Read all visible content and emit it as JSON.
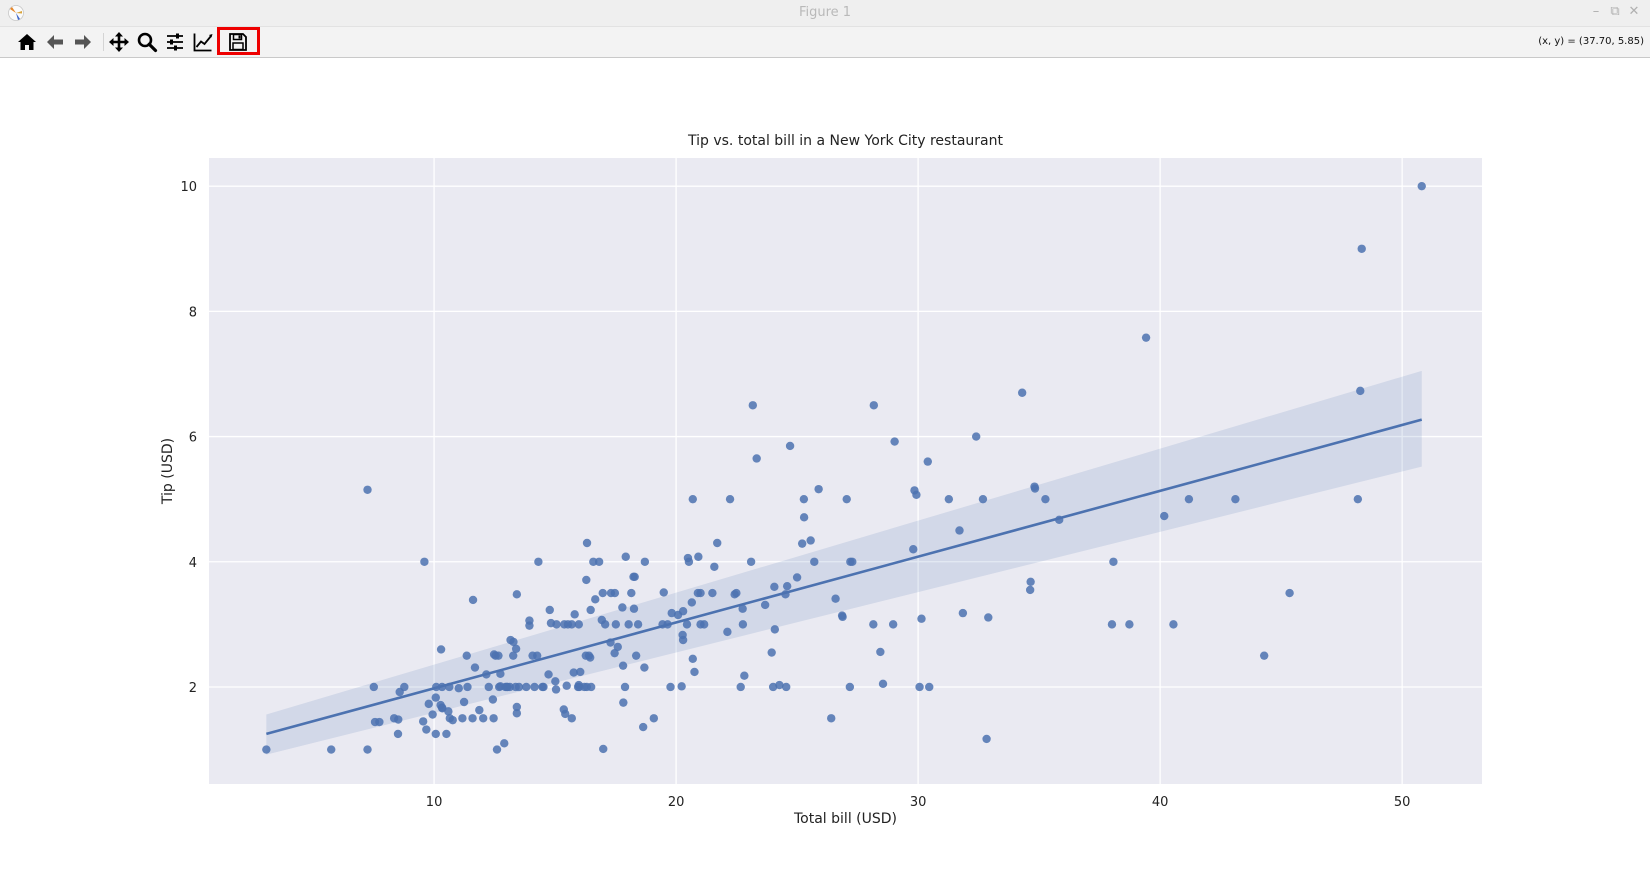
{
  "window": {
    "title": "Figure 1",
    "minimize_icon": "minimize-icon",
    "restore_icon": "restore-icon",
    "close_icon": "close-icon"
  },
  "toolbar": {
    "buttons": [
      {
        "icon": "home-icon",
        "name": "home-button"
      },
      {
        "icon": "back-arrow-icon",
        "name": "back-button"
      },
      {
        "icon": "forward-arrow-icon",
        "name": "forward-button"
      },
      {
        "icon": "pan-move-icon",
        "name": "pan-button"
      },
      {
        "icon": "zoom-magnifier-icon",
        "name": "zoom-button"
      },
      {
        "icon": "subplots-sliders-icon",
        "name": "configure-subplots-button"
      },
      {
        "icon": "edit-axes-icon",
        "name": "edit-axes-button"
      },
      {
        "icon": "save-floppy-icon",
        "name": "save-button",
        "highlighted": true
      }
    ],
    "coord_readout": "(x, y) = (37.70, 5.85)",
    "highlight_color": "#ee0000"
  },
  "chart_data": {
    "type": "scatter",
    "title": "Tip vs. total bill in a New York City restaurant",
    "xlabel": "Total bill (USD)",
    "ylabel": "Tip (USD)",
    "xlim": [
      0.7,
      53.3
    ],
    "ylim": [
      0.45,
      10.45
    ],
    "xticks": [
      10,
      20,
      30,
      40,
      50
    ],
    "yticks": [
      2,
      4,
      6,
      8,
      10
    ],
    "grid": true,
    "background": "#eaeaf2",
    "point_color": "#4c72b0",
    "line_color": "#4c72b0",
    "band_color": "#4c72b0",
    "points": [
      [
        3.07,
        1.0
      ],
      [
        5.75,
        1.0
      ],
      [
        7.25,
        1.0
      ],
      [
        7.25,
        5.15
      ],
      [
        7.51,
        2.0
      ],
      [
        7.56,
        1.44
      ],
      [
        7.74,
        1.44
      ],
      [
        8.35,
        1.5
      ],
      [
        8.51,
        1.25
      ],
      [
        8.52,
        1.48
      ],
      [
        8.58,
        1.92
      ],
      [
        8.77,
        2.0
      ],
      [
        9.55,
        1.45
      ],
      [
        9.6,
        4.0
      ],
      [
        9.68,
        1.32
      ],
      [
        9.78,
        1.73
      ],
      [
        9.94,
        1.56
      ],
      [
        10.07,
        1.83
      ],
      [
        10.07,
        1.25
      ],
      [
        10.09,
        2.0
      ],
      [
        10.27,
        1.71
      ],
      [
        10.29,
        2.6
      ],
      [
        10.33,
        1.67
      ],
      [
        10.33,
        2.0
      ],
      [
        10.34,
        1.66
      ],
      [
        10.51,
        1.25
      ],
      [
        10.59,
        1.61
      ],
      [
        10.63,
        2.0
      ],
      [
        10.65,
        1.5
      ],
      [
        10.77,
        1.47
      ],
      [
        11.02,
        1.98
      ],
      [
        11.17,
        1.5
      ],
      [
        11.24,
        1.76
      ],
      [
        11.35,
        2.5
      ],
      [
        11.38,
        2.0
      ],
      [
        11.59,
        1.5
      ],
      [
        11.61,
        3.39
      ],
      [
        11.69,
        2.31
      ],
      [
        11.87,
        1.63
      ],
      [
        12.03,
        1.5
      ],
      [
        12.16,
        2.2
      ],
      [
        12.26,
        2.0
      ],
      [
        12.43,
        1.8
      ],
      [
        12.46,
        1.5
      ],
      [
        12.48,
        2.52
      ],
      [
        12.54,
        2.5
      ],
      [
        12.6,
        1.0
      ],
      [
        12.66,
        2.5
      ],
      [
        12.69,
        2.0
      ],
      [
        12.74,
        2.01
      ],
      [
        12.74,
        2.21
      ],
      [
        12.9,
        1.1
      ],
      [
        12.95,
        2.0
      ],
      [
        13.0,
        2.0
      ],
      [
        13.03,
        2.0
      ],
      [
        13.13,
        2.0
      ],
      [
        13.16,
        2.75
      ],
      [
        13.28,
        2.72
      ],
      [
        13.27,
        2.5
      ],
      [
        13.37,
        2.0
      ],
      [
        13.39,
        2.61
      ],
      [
        13.42,
        1.58
      ],
      [
        13.42,
        1.68
      ],
      [
        13.42,
        3.48
      ],
      [
        13.51,
        2.0
      ],
      [
        13.81,
        2.0
      ],
      [
        13.94,
        3.06
      ],
      [
        13.94,
        2.98
      ],
      [
        14.07,
        2.5
      ],
      [
        14.15,
        2.0
      ],
      [
        14.26,
        2.5
      ],
      [
        14.31,
        4.0
      ],
      [
        14.48,
        2.0
      ],
      [
        14.52,
        2.0
      ],
      [
        14.73,
        2.2
      ],
      [
        14.78,
        3.23
      ],
      [
        14.83,
        3.02
      ],
      [
        15.01,
        2.09
      ],
      [
        15.04,
        1.96
      ],
      [
        15.06,
        3.0
      ],
      [
        15.36,
        1.64
      ],
      [
        15.38,
        3.0
      ],
      [
        15.42,
        1.57
      ],
      [
        15.48,
        2.02
      ],
      [
        15.53,
        3.0
      ],
      [
        15.69,
        1.5
      ],
      [
        15.69,
        3.0
      ],
      [
        15.77,
        2.23
      ],
      [
        15.81,
        3.16
      ],
      [
        15.95,
        2.0
      ],
      [
        15.98,
        2.03
      ],
      [
        15.98,
        3.0
      ],
      [
        16.0,
        2.0
      ],
      [
        16.04,
        2.24
      ],
      [
        16.21,
        2.0
      ],
      [
        16.27,
        2.5
      ],
      [
        16.29,
        3.71
      ],
      [
        16.31,
        2.0
      ],
      [
        16.32,
        4.3
      ],
      [
        16.4,
        2.5
      ],
      [
        16.45,
        2.47
      ],
      [
        16.47,
        3.23
      ],
      [
        16.49,
        2.0
      ],
      [
        16.58,
        4.0
      ],
      [
        16.66,
        3.4
      ],
      [
        16.82,
        4.0
      ],
      [
        16.93,
        3.07
      ],
      [
        16.97,
        3.5
      ],
      [
        16.99,
        1.01
      ],
      [
        17.07,
        3.0
      ],
      [
        17.29,
        2.71
      ],
      [
        17.31,
        3.5
      ],
      [
        17.46,
        2.54
      ],
      [
        17.47,
        3.5
      ],
      [
        17.51,
        3.0
      ],
      [
        17.59,
        2.64
      ],
      [
        17.78,
        3.27
      ],
      [
        17.81,
        2.34
      ],
      [
        17.82,
        1.75
      ],
      [
        17.89,
        2.0
      ],
      [
        17.92,
        4.08
      ],
      [
        18.04,
        3.0
      ],
      [
        18.15,
        3.5
      ],
      [
        18.24,
        3.76
      ],
      [
        18.26,
        3.25
      ],
      [
        18.29,
        3.76
      ],
      [
        18.35,
        2.5
      ],
      [
        18.43,
        3.0
      ],
      [
        18.64,
        1.36
      ],
      [
        18.69,
        2.31
      ],
      [
        18.71,
        4.0
      ],
      [
        19.08,
        1.5
      ],
      [
        19.44,
        3.0
      ],
      [
        19.49,
        3.51
      ],
      [
        19.65,
        3.0
      ],
      [
        19.77,
        2.0
      ],
      [
        19.82,
        3.18
      ],
      [
        20.08,
        3.15
      ],
      [
        20.23,
        2.01
      ],
      [
        20.27,
        2.83
      ],
      [
        20.29,
        2.75
      ],
      [
        20.29,
        3.21
      ],
      [
        20.45,
        3.0
      ],
      [
        20.49,
        4.06
      ],
      [
        20.53,
        4.0
      ],
      [
        20.65,
        3.35
      ],
      [
        20.69,
        2.45
      ],
      [
        20.69,
        5.0
      ],
      [
        20.76,
        2.24
      ],
      [
        20.9,
        3.5
      ],
      [
        20.92,
        4.08
      ],
      [
        21.01,
        3.5
      ],
      [
        21.01,
        3.0
      ],
      [
        21.16,
        3.0
      ],
      [
        21.5,
        3.5
      ],
      [
        21.58,
        3.92
      ],
      [
        21.7,
        4.3
      ],
      [
        22.12,
        2.88
      ],
      [
        22.23,
        5.0
      ],
      [
        22.42,
        3.48
      ],
      [
        22.49,
        3.5
      ],
      [
        22.67,
        2.0
      ],
      [
        22.75,
        3.25
      ],
      [
        22.76,
        3.0
      ],
      [
        22.82,
        2.18
      ],
      [
        23.1,
        4.0
      ],
      [
        23.17,
        6.5
      ],
      [
        23.33,
        5.65
      ],
      [
        23.68,
        3.31
      ],
      [
        23.95,
        2.55
      ],
      [
        24.01,
        2.0
      ],
      [
        24.06,
        3.6
      ],
      [
        24.08,
        2.92
      ],
      [
        24.27,
        2.03
      ],
      [
        24.52,
        3.48
      ],
      [
        24.55,
        2.0
      ],
      [
        24.59,
        3.61
      ],
      [
        24.71,
        5.85
      ],
      [
        25.0,
        3.75
      ],
      [
        25.21,
        4.29
      ],
      [
        25.28,
        5.0
      ],
      [
        25.29,
        4.71
      ],
      [
        25.56,
        4.34
      ],
      [
        25.71,
        4.0
      ],
      [
        25.89,
        5.16
      ],
      [
        26.41,
        1.5
      ],
      [
        26.59,
        3.41
      ],
      [
        26.86,
        3.14
      ],
      [
        26.88,
        3.12
      ],
      [
        27.05,
        5.0
      ],
      [
        27.18,
        2.0
      ],
      [
        27.2,
        4.0
      ],
      [
        27.28,
        4.0
      ],
      [
        28.15,
        3.0
      ],
      [
        28.17,
        6.5
      ],
      [
        28.44,
        2.56
      ],
      [
        28.55,
        2.05
      ],
      [
        28.97,
        3.0
      ],
      [
        29.03,
        5.92
      ],
      [
        29.8,
        4.2
      ],
      [
        29.85,
        5.14
      ],
      [
        29.93,
        5.07
      ],
      [
        30.06,
        2.0
      ],
      [
        30.14,
        3.09
      ],
      [
        30.4,
        5.6
      ],
      [
        30.46,
        2.0
      ],
      [
        31.27,
        5.0
      ],
      [
        31.71,
        4.5
      ],
      [
        31.85,
        3.18
      ],
      [
        32.4,
        6.0
      ],
      [
        32.68,
        5.0
      ],
      [
        32.83,
        1.17
      ],
      [
        32.9,
        3.11
      ],
      [
        34.3,
        6.7
      ],
      [
        34.63,
        3.55
      ],
      [
        34.65,
        3.68
      ],
      [
        34.81,
        5.2
      ],
      [
        34.83,
        5.17
      ],
      [
        35.26,
        5.0
      ],
      [
        35.83,
        4.67
      ],
      [
        38.01,
        3.0
      ],
      [
        38.07,
        4.0
      ],
      [
        38.73,
        3.0
      ],
      [
        39.42,
        7.58
      ],
      [
        40.17,
        4.73
      ],
      [
        40.55,
        3.0
      ],
      [
        41.19,
        5.0
      ],
      [
        43.11,
        5.0
      ],
      [
        44.3,
        2.5
      ],
      [
        45.35,
        3.5
      ],
      [
        48.17,
        5.0
      ],
      [
        48.27,
        6.73
      ],
      [
        48.33,
        9.0
      ],
      [
        50.81,
        10.0
      ]
    ],
    "regression": {
      "x": [
        3.07,
        50.81
      ],
      "y": [
        1.25,
        6.27
      ],
      "ci_lower": [
        0.92,
        5.52
      ],
      "ci_upper": [
        1.56,
        7.05
      ]
    }
  }
}
